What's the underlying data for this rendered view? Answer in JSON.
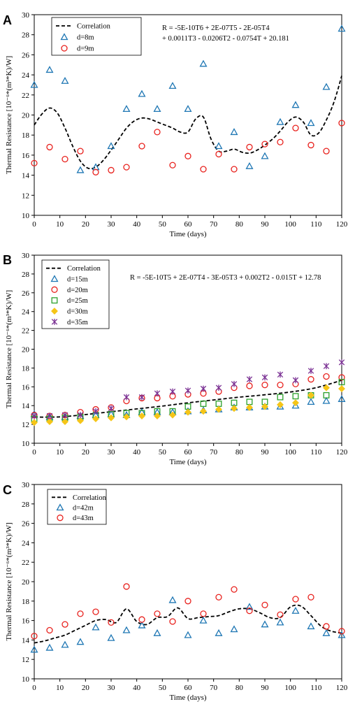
{
  "chart_data": [
    {
      "type": "scatter",
      "panel_label": "A",
      "xlabel": "Time (days)",
      "ylabel": "Thermal Resistance [10⁻⁶*(m³*K)/W]",
      "xlim": [
        0,
        120
      ],
      "ylim": [
        10,
        30
      ],
      "x_ticks": [
        0,
        10,
        20,
        30,
        40,
        50,
        60,
        70,
        80,
        90,
        100,
        110,
        120
      ],
      "y_ticks": [
        10,
        12,
        14,
        16,
        18,
        20,
        22,
        24,
        26,
        28,
        30
      ],
      "x_tick_labels": [
        "0",
        "10",
        "20",
        "30",
        "40",
        "50",
        "60",
        "70",
        "80",
        "90",
        "100",
        "110",
        "120"
      ],
      "y_tick_labels": [
        "10",
        "12",
        "14",
        "16",
        "18",
        "20",
        "22",
        "24",
        "26",
        "28",
        "30"
      ],
      "legend": {
        "placement": "top-left",
        "entries": [
          "Correlation",
          "d=8m",
          "d=9m"
        ]
      },
      "equation": [
        "R = -5E-10T6 + 2E-07T5 - 2E-05T4",
        "+ 0.0011T3 - 0.0206T2 - 0.0754T + 20.181"
      ],
      "correlation": {
        "name": "Correlation",
        "color": "#000000",
        "x": [
          0,
          3,
          6,
          9,
          12,
          15,
          18,
          21,
          24,
          27,
          30,
          33,
          36,
          39,
          42,
          45,
          48,
          51,
          54,
          57,
          60,
          63,
          66,
          69,
          72,
          75,
          78,
          81,
          84,
          87,
          90,
          93,
          96,
          99,
          102,
          105,
          108,
          111,
          114,
          117,
          120
        ],
        "y": [
          19.0,
          20.1,
          20.7,
          20.2,
          18.7,
          16.9,
          15.4,
          14.7,
          14.8,
          15.5,
          16.5,
          17.6,
          18.7,
          19.4,
          19.7,
          19.6,
          19.3,
          19.0,
          18.7,
          18.3,
          18.3,
          19.6,
          19.8,
          17.6,
          16.4,
          16.4,
          16.6,
          16.3,
          16.2,
          16.5,
          17.0,
          17.6,
          18.4,
          19.3,
          19.8,
          19.3,
          18.0,
          18.2,
          19.5,
          21.3,
          23.9
        ]
      },
      "series": [
        {
          "name": "d=8m",
          "marker": "triangle",
          "color": "#1F77B4",
          "x": [
            0,
            6,
            12,
            18,
            24,
            30,
            36,
            42,
            48,
            54,
            60,
            66,
            72,
            78,
            84,
            90,
            96,
            102,
            108,
            114,
            120
          ],
          "y": [
            23.0,
            24.5,
            23.4,
            14.5,
            14.8,
            16.9,
            20.6,
            22.1,
            20.6,
            22.9,
            20.6,
            25.1,
            16.9,
            18.3,
            14.9,
            15.9,
            19.3,
            21.0,
            19.2,
            22.8,
            28.6
          ]
        },
        {
          "name": "d=9m",
          "marker": "circle",
          "color": "#E8211D",
          "x": [
            0,
            6,
            12,
            18,
            24,
            30,
            36,
            42,
            48,
            54,
            60,
            66,
            72,
            78,
            84,
            90,
            96,
            102,
            108,
            114,
            120
          ],
          "y": [
            15.2,
            16.8,
            15.6,
            16.4,
            14.3,
            14.5,
            14.8,
            16.9,
            18.3,
            15.0,
            15.9,
            14.6,
            16.1,
            14.6,
            16.8,
            17.1,
            17.3,
            18.7,
            17.0,
            16.4,
            19.2
          ]
        }
      ]
    },
    {
      "type": "scatter",
      "panel_label": "B",
      "xlabel": "Time (days)",
      "ylabel": "Thermal Resistance [10⁻⁶*(m³*K)/W]",
      "xlim": [
        0,
        120
      ],
      "ylim": [
        10,
        30
      ],
      "x_ticks": [
        0,
        10,
        20,
        30,
        40,
        50,
        60,
        70,
        80,
        90,
        100,
        110,
        120
      ],
      "y_ticks": [
        10,
        12,
        14,
        16,
        18,
        20,
        22,
        24,
        26,
        28,
        30
      ],
      "x_tick_labels": [
        "0",
        "10",
        "20",
        "30",
        "40",
        "50",
        "60",
        "70",
        "80",
        "90",
        "100",
        "110",
        "120"
      ],
      "y_tick_labels": [
        "10",
        "12",
        "14",
        "16",
        "18",
        "20",
        "22",
        "24",
        "26",
        "28",
        "30"
      ],
      "legend": {
        "placement": "top-left",
        "entries": [
          "Correlation",
          "d=15m",
          "d=20m",
          "d=25m",
          "d=30m",
          "d=35m"
        ]
      },
      "equation": [
        "R = -5E-10T5 + 2E-07T4 - 3E-05T3 + 0.002T2 - 0.015T + 12.78"
      ],
      "correlation": {
        "name": "Correlation",
        "color": "#000000",
        "x": [
          0,
          10,
          20,
          30,
          40,
          50,
          60,
          70,
          80,
          90,
          100,
          110,
          120
        ],
        "y": [
          12.78,
          12.8,
          13.05,
          13.35,
          13.65,
          13.95,
          14.3,
          14.6,
          14.9,
          15.15,
          15.45,
          15.9,
          16.7
        ]
      },
      "series": [
        {
          "name": "d=15m",
          "marker": "triangle",
          "color": "#1F77B4",
          "x": [
            0,
            6,
            12,
            18,
            24,
            30,
            36,
            42,
            48,
            54,
            60,
            66,
            72,
            78,
            84,
            90,
            96,
            102,
            108,
            114,
            120
          ],
          "y": [
            13.1,
            12.8,
            12.8,
            12.9,
            13.0,
            13.1,
            13.0,
            13.3,
            13.3,
            13.3,
            13.4,
            13.5,
            13.6,
            13.8,
            13.8,
            13.9,
            13.9,
            14.0,
            14.4,
            14.5,
            14.7
          ]
        },
        {
          "name": "d=20m",
          "marker": "circle",
          "color": "#E8211D",
          "x": [
            0,
            6,
            12,
            18,
            24,
            30,
            36,
            42,
            48,
            54,
            60,
            66,
            72,
            78,
            84,
            90,
            96,
            102,
            108,
            114,
            120
          ],
          "y": [
            13.0,
            12.9,
            13.0,
            13.3,
            13.6,
            13.8,
            14.5,
            14.8,
            14.8,
            15.0,
            15.2,
            15.3,
            15.5,
            15.9,
            16.1,
            16.2,
            16.2,
            16.3,
            16.8,
            17.1,
            17.0
          ]
        },
        {
          "name": "d=25m",
          "marker": "square",
          "color": "#2CA02C",
          "x": [
            0,
            6,
            12,
            18,
            24,
            30,
            36,
            42,
            48,
            54,
            60,
            66,
            72,
            78,
            84,
            90,
            96,
            102,
            108,
            114,
            120
          ],
          "y": [
            12.6,
            12.6,
            12.7,
            12.8,
            13.0,
            13.1,
            13.2,
            13.2,
            13.4,
            13.4,
            13.9,
            14.2,
            14.2,
            14.3,
            14.4,
            14.4,
            14.9,
            15.0,
            15.1,
            15.1,
            16.5
          ]
        },
        {
          "name": "d=30m",
          "marker": "diamond",
          "color": "#F5C518",
          "x": [
            0,
            6,
            12,
            18,
            24,
            30,
            36,
            42,
            48,
            54,
            60,
            66,
            72,
            78,
            84,
            90,
            96,
            102,
            108,
            114,
            120
          ],
          "y": [
            12.2,
            12.3,
            12.3,
            12.4,
            12.6,
            12.7,
            12.8,
            12.9,
            12.9,
            13.0,
            13.3,
            13.4,
            13.6,
            13.7,
            13.8,
            13.9,
            14.1,
            14.3,
            15.1,
            15.9,
            15.8
          ]
        },
        {
          "name": "d=35m",
          "marker": "asterisk",
          "color": "#7B3294",
          "x": [
            0,
            6,
            12,
            18,
            24,
            30,
            36,
            42,
            48,
            54,
            60,
            66,
            72,
            78,
            84,
            90,
            96,
            102,
            108,
            114,
            120
          ],
          "y": [
            12.9,
            12.9,
            13.0,
            13.0,
            13.4,
            13.7,
            14.9,
            14.9,
            15.3,
            15.5,
            15.6,
            15.8,
            15.9,
            16.3,
            16.8,
            17.0,
            17.3,
            16.7,
            17.7,
            18.2,
            18.6
          ]
        }
      ]
    },
    {
      "type": "scatter",
      "panel_label": "C",
      "xlabel": "Time (days)",
      "ylabel": "Thermal Resistance [10⁻⁶*(m³*K)/W]",
      "xlim": [
        0,
        120
      ],
      "ylim": [
        10,
        30
      ],
      "x_ticks": [
        0,
        10,
        20,
        30,
        40,
        50,
        60,
        70,
        80,
        90,
        100,
        110,
        120
      ],
      "y_ticks": [
        10,
        12,
        14,
        16,
        18,
        20,
        22,
        24,
        26,
        28,
        30
      ],
      "x_tick_labels": [
        "0",
        "10",
        "20",
        "30",
        "40",
        "50",
        "60",
        "70",
        "80",
        "90",
        "100",
        "110",
        "120"
      ],
      "y_tick_labels": [
        "10",
        "12",
        "14",
        "16",
        "18",
        "20",
        "22",
        "24",
        "26",
        "28",
        "30"
      ],
      "legend": {
        "placement": "top-left",
        "entries": [
          "Correlation",
          "d=42m",
          "d=43m"
        ]
      },
      "equation": [],
      "correlation": {
        "name": "Correlation",
        "color": "#000000",
        "x": [
          0,
          4,
          8,
          12,
          16,
          20,
          24,
          28,
          32,
          36,
          40,
          44,
          48,
          52,
          56,
          60,
          64,
          68,
          72,
          76,
          80,
          84,
          88,
          92,
          96,
          100,
          104,
          108,
          112,
          116,
          120
        ],
        "y": [
          13.7,
          13.9,
          14.2,
          14.5,
          15.0,
          15.5,
          16.0,
          16.1,
          15.8,
          17.2,
          15.9,
          15.6,
          16.3,
          16.4,
          17.3,
          16.2,
          16.3,
          16.4,
          16.5,
          16.9,
          17.2,
          17.2,
          16.8,
          16.3,
          16.3,
          17.4,
          17.5,
          16.5,
          15.4,
          14.9,
          14.7
        ]
      },
      "series": [
        {
          "name": "d=42m",
          "marker": "triangle",
          "color": "#1F77B4",
          "x": [
            0,
            6,
            12,
            18,
            24,
            30,
            36,
            42,
            48,
            54,
            60,
            66,
            72,
            78,
            84,
            90,
            96,
            102,
            108,
            114,
            120
          ],
          "y": [
            13.0,
            13.2,
            13.5,
            13.8,
            15.3,
            14.2,
            15.0,
            15.5,
            14.7,
            18.1,
            14.5,
            16.0,
            14.7,
            15.1,
            17.4,
            15.6,
            15.8,
            17.0,
            15.4,
            14.7,
            14.5
          ]
        },
        {
          "name": "d=43m",
          "marker": "circle",
          "color": "#E8211D",
          "x": [
            0,
            6,
            12,
            18,
            24,
            30,
            36,
            42,
            48,
            54,
            60,
            66,
            72,
            78,
            84,
            90,
            96,
            102,
            108,
            114,
            120
          ],
          "y": [
            14.4,
            15.0,
            15.6,
            16.7,
            16.9,
            15.8,
            19.5,
            16.1,
            16.7,
            15.9,
            18.0,
            16.7,
            18.4,
            19.2,
            17.0,
            17.6,
            16.6,
            18.2,
            18.4,
            15.4,
            14.9
          ]
        }
      ]
    }
  ]
}
